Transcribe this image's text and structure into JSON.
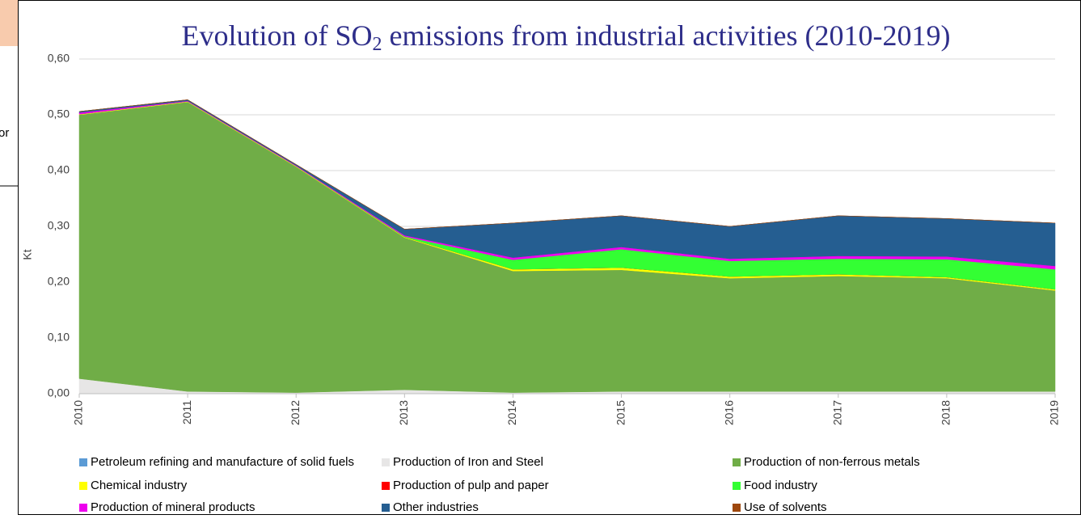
{
  "background": {
    "cell_text": "or"
  },
  "chart_data": {
    "type": "stacked_area",
    "title": [
      "Evolution of SO",
      "2",
      " emissions from industrial activities (2010-2019)"
    ],
    "y_label": "Kt",
    "categories": [
      "2010",
      "2011",
      "2012",
      "2013",
      "2014",
      "2015",
      "2016",
      "2017",
      "2018",
      "2019"
    ],
    "ylim": [
      0,
      0.6
    ],
    "yticks": [
      {
        "value": 0,
        "label": "0,00"
      },
      {
        "value": 0.1,
        "label": "0,10"
      },
      {
        "value": 0.2,
        "label": "0,20"
      },
      {
        "value": 0.3,
        "label": "0,30"
      },
      {
        "value": 0.4,
        "label": "0,40"
      },
      {
        "value": 0.5,
        "label": "0,50"
      },
      {
        "value": 0.6,
        "label": "0,60"
      }
    ],
    "grid": true,
    "legend": "bottom",
    "series": [
      {
        "name": "Petroleum refining and manufacture of solid fuels",
        "color": "#5b9bd5",
        "values": [
          0,
          0,
          0,
          0,
          0,
          0,
          0,
          0,
          0,
          0
        ]
      },
      {
        "name": "Production of Iron and Steel",
        "color": "#e7e6e6",
        "values": [
          0.027,
          0.004,
          0.002,
          0.007,
          0.002,
          0.004,
          0.004,
          0.004,
          0.004,
          0.004
        ]
      },
      {
        "name": "Production of non-ferrous metals",
        "color": "#70ad47",
        "values": [
          0.473,
          0.519,
          0.405,
          0.273,
          0.218,
          0.218,
          0.203,
          0.207,
          0.203,
          0.181
        ]
      },
      {
        "name": "Chemical industry",
        "color": "#ffff00",
        "values": [
          0.001,
          0.001,
          0.001,
          0.001,
          0.003,
          0.004,
          0.003,
          0.003,
          0.002,
          0.002
        ]
      },
      {
        "name": "Production of pulp and paper",
        "color": "#ff0000",
        "values": [
          0,
          0,
          0,
          0,
          0,
          0,
          0,
          0,
          0,
          0
        ]
      },
      {
        "name": "Food industry",
        "color": "#33ff33",
        "values": [
          0,
          0,
          0,
          0.001,
          0.017,
          0.033,
          0.028,
          0.028,
          0.032,
          0.036
        ]
      },
      {
        "name": "Production of mineral products",
        "color": "#ee00ee",
        "values": [
          0.003,
          0.001,
          0.001,
          0.002,
          0.004,
          0.004,
          0.004,
          0.005,
          0.005,
          0.006
        ]
      },
      {
        "name": "Other industries",
        "color": "#255e91",
        "values": [
          0.002,
          0.002,
          0.002,
          0.011,
          0.062,
          0.056,
          0.058,
          0.072,
          0.068,
          0.077
        ]
      },
      {
        "name": "Use of solvents",
        "color": "#9e480e",
        "values": [
          0,
          0,
          0,
          0,
          0,
          0,
          0,
          0,
          0,
          0
        ]
      }
    ]
  }
}
